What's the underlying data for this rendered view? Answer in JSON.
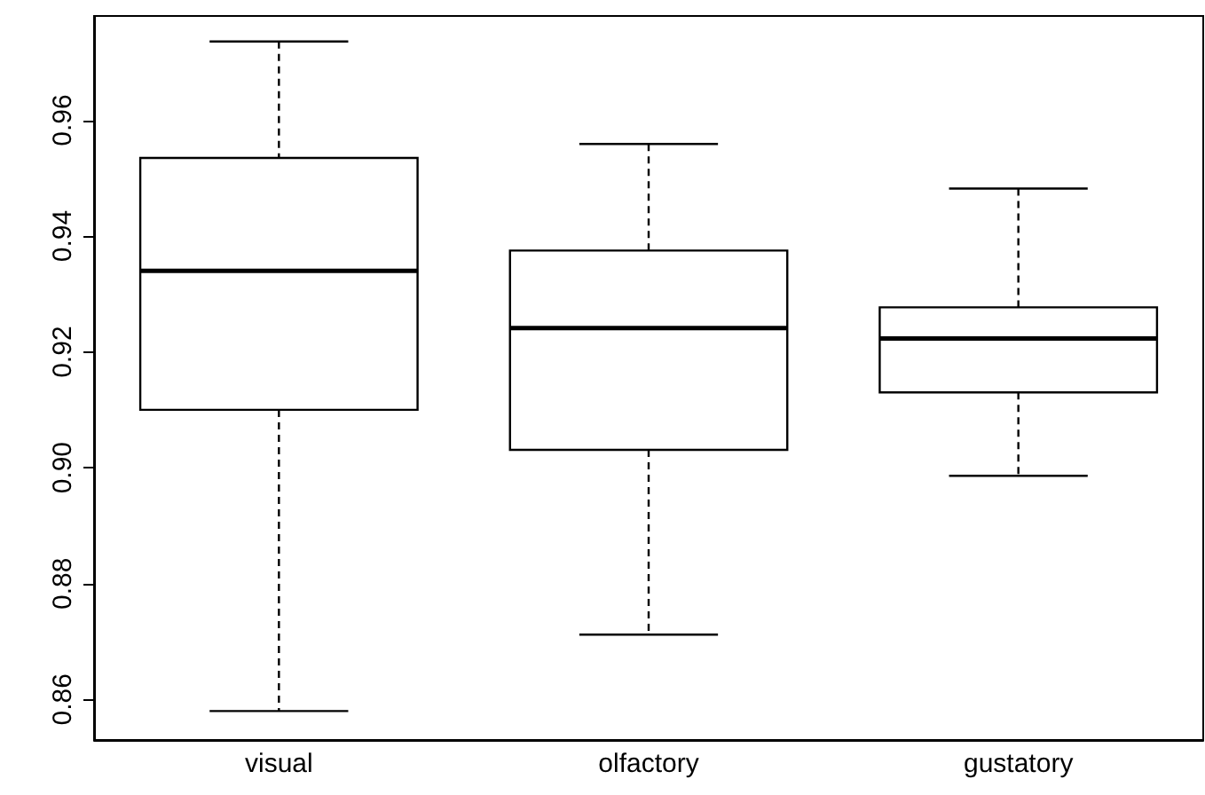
{
  "chart_data": {
    "type": "box",
    "categories": [
      "visual",
      "olfactory",
      "gustatory"
    ],
    "boxes": [
      {
        "low": 0.858,
        "q1": 0.91,
        "median": 0.934,
        "q3": 0.9535,
        "high": 0.9736
      },
      {
        "low": 0.8712,
        "q1": 0.9031,
        "median": 0.9241,
        "q3": 0.9375,
        "high": 0.9559
      },
      {
        "low": 0.8986,
        "q1": 0.913,
        "median": 0.9223,
        "q3": 0.9277,
        "high": 0.9482
      }
    ],
    "color": "#000000",
    "ylim": [
      0.853,
      0.978
    ],
    "yticks": [
      0.86,
      0.88,
      {
        "value": 0.9,
        "label": "0.90"
      },
      0.92,
      0.94,
      0.96
    ],
    "grid": false
  }
}
